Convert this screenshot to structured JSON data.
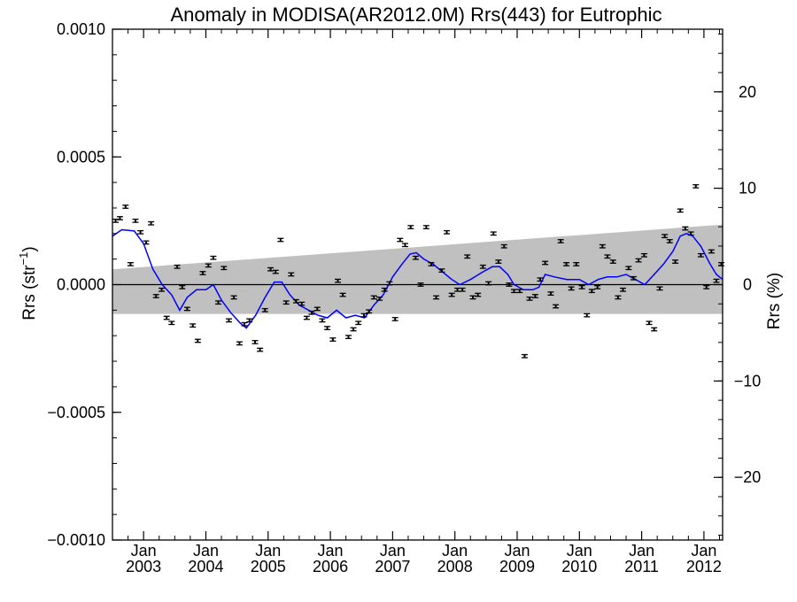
{
  "chart_data": {
    "type": "scatter",
    "title": "Anomaly in MODISA(AR2012.0M) Rrs(443) for Eutrophic",
    "ylabel": "Rrs (str⁻¹)",
    "ylabel_main": "Rrs (str",
    "ylabel_sup": "−1",
    "ylabel_close": ")",
    "y2label": "Rrs (%)",
    "xlim": [
      2002.5,
      2012.3
    ],
    "ylim": [
      -0.001,
      0.001
    ],
    "y2lim": [
      -26.5,
      26.5
    ],
    "x_ticks": [
      {
        "x": 2003.0,
        "month": "Jan",
        "year": "2003"
      },
      {
        "x": 2004.0,
        "month": "Jan",
        "year": "2004"
      },
      {
        "x": 2005.0,
        "month": "Jan",
        "year": "2005"
      },
      {
        "x": 2006.0,
        "month": "Jan",
        "year": "2006"
      },
      {
        "x": 2007.0,
        "month": "Jan",
        "year": "2007"
      },
      {
        "x": 2008.0,
        "month": "Jan",
        "year": "2008"
      },
      {
        "x": 2009.0,
        "month": "Jan",
        "year": "2009"
      },
      {
        "x": 2010.0,
        "month": "Jan",
        "year": "2010"
      },
      {
        "x": 2011.0,
        "month": "Jan",
        "year": "2011"
      },
      {
        "x": 2012.0,
        "month": "Jan",
        "year": "2012"
      }
    ],
    "y_ticks": [
      {
        "value": 0.001,
        "label": "0.0010"
      },
      {
        "value": 0.0005,
        "label": "0.0005"
      },
      {
        "value": 0.0,
        "label": "0.0000"
      },
      {
        "value": -0.0005,
        "label": "−0.0005"
      },
      {
        "value": -0.001,
        "label": "−0.0010"
      }
    ],
    "y2_ticks": [
      {
        "value": 20,
        "label": "20"
      },
      {
        "value": 10,
        "label": "10"
      },
      {
        "value": 0,
        "label": "0"
      },
      {
        "value": -10,
        "label": "−10"
      },
      {
        "value": -20,
        "label": "−20"
      }
    ],
    "band": {
      "upper": [
        [
          2002.5,
          6e-05
        ],
        [
          2012.3,
          0.000235
        ]
      ],
      "lower": [
        [
          2002.5,
          -0.000115
        ],
        [
          2012.3,
          -0.000115
        ]
      ]
    },
    "error_halfwidth": 6e-06,
    "points": [
      {
        "x": 2002.55,
        "y": 0.00025
      },
      {
        "x": 2002.62,
        "y": 0.00026
      },
      {
        "x": 2002.71,
        "y": 0.000305
      },
      {
        "x": 2002.79,
        "y": 8e-05
      },
      {
        "x": 2002.87,
        "y": 0.00025
      },
      {
        "x": 2002.95,
        "y": 0.000205
      },
      {
        "x": 2003.04,
        "y": 0.000165
      },
      {
        "x": 2003.12,
        "y": 0.00024
      },
      {
        "x": 2003.2,
        "y": -4.5e-05
      },
      {
        "x": 2003.29,
        "y": -2e-05
      },
      {
        "x": 2003.37,
        "y": -0.00013
      },
      {
        "x": 2003.45,
        "y": -0.00015
      },
      {
        "x": 2003.54,
        "y": 7e-05
      },
      {
        "x": 2003.62,
        "y": -1e-05
      },
      {
        "x": 2003.7,
        "y": -9.5e-05
      },
      {
        "x": 2003.79,
        "y": -0.00016
      },
      {
        "x": 2003.87,
        "y": -0.00022
      },
      {
        "x": 2003.95,
        "y": 4.5e-05
      },
      {
        "x": 2004.04,
        "y": 7.5e-05
      },
      {
        "x": 2004.12,
        "y": 0.000105
      },
      {
        "x": 2004.2,
        "y": -7e-05
      },
      {
        "x": 2004.29,
        "y": 6.5e-05
      },
      {
        "x": 2004.37,
        "y": -0.00014
      },
      {
        "x": 2004.45,
        "y": -5e-05
      },
      {
        "x": 2004.54,
        "y": -0.00023
      },
      {
        "x": 2004.62,
        "y": -0.000155
      },
      {
        "x": 2004.7,
        "y": -0.00014
      },
      {
        "x": 2004.79,
        "y": -0.000225
      },
      {
        "x": 2004.87,
        "y": -0.000255
      },
      {
        "x": 2004.95,
        "y": -0.0001
      },
      {
        "x": 2005.04,
        "y": 6e-05
      },
      {
        "x": 2005.12,
        "y": 5e-05
      },
      {
        "x": 2005.2,
        "y": 0.000175
      },
      {
        "x": 2005.29,
        "y": -7e-05
      },
      {
        "x": 2005.37,
        "y": 4e-05
      },
      {
        "x": 2005.45,
        "y": -6.5e-05
      },
      {
        "x": 2005.54,
        "y": -7.5e-05
      },
      {
        "x": 2005.62,
        "y": -0.00013
      },
      {
        "x": 2005.7,
        "y": -0.00011
      },
      {
        "x": 2005.79,
        "y": -9.5e-05
      },
      {
        "x": 2005.87,
        "y": -0.00014
      },
      {
        "x": 2005.95,
        "y": -0.00017
      },
      {
        "x": 2006.04,
        "y": -0.000215
      },
      {
        "x": 2006.12,
        "y": 1.5e-05
      },
      {
        "x": 2006.2,
        "y": -4e-05
      },
      {
        "x": 2006.29,
        "y": -0.000205
      },
      {
        "x": 2006.37,
        "y": -0.000175
      },
      {
        "x": 2006.45,
        "y": -0.00015
      },
      {
        "x": 2006.54,
        "y": -0.00012
      },
      {
        "x": 2006.62,
        "y": -0.000105
      },
      {
        "x": 2006.7,
        "y": -5e-05
      },
      {
        "x": 2006.79,
        "y": -5.5e-05
      },
      {
        "x": 2006.87,
        "y": -2e-05
      },
      {
        "x": 2006.95,
        "y": 5e-06
      },
      {
        "x": 2007.04,
        "y": -0.000135
      },
      {
        "x": 2007.12,
        "y": 0.000175
      },
      {
        "x": 2007.2,
        "y": 0.000155
      },
      {
        "x": 2007.29,
        "y": 0.000225
      },
      {
        "x": 2007.37,
        "y": 0.000105
      },
      {
        "x": 2007.45,
        "y": 0.0
      },
      {
        "x": 2007.54,
        "y": 0.000225
      },
      {
        "x": 2007.62,
        "y": 8e-05
      },
      {
        "x": 2007.7,
        "y": -5e-05
      },
      {
        "x": 2007.79,
        "y": 5.5e-05
      },
      {
        "x": 2007.87,
        "y": 0.000205
      },
      {
        "x": 2007.95,
        "y": -4e-05
      },
      {
        "x": 2008.04,
        "y": -2e-05
      },
      {
        "x": 2008.12,
        "y": -2e-05
      },
      {
        "x": 2008.2,
        "y": 0.00011
      },
      {
        "x": 2008.29,
        "y": -5e-05
      },
      {
        "x": 2008.37,
        "y": -4e-05
      },
      {
        "x": 2008.45,
        "y": 7e-05
      },
      {
        "x": 2008.54,
        "y": 5e-06
      },
      {
        "x": 2008.62,
        "y": 0.0002
      },
      {
        "x": 2008.7,
        "y": 9e-05
      },
      {
        "x": 2008.79,
        "y": 0.00015
      },
      {
        "x": 2008.87,
        "y": 0.0
      },
      {
        "x": 2008.95,
        "y": -2.5e-05
      },
      {
        "x": 2009.04,
        "y": -2.5e-05
      },
      {
        "x": 2009.12,
        "y": -0.00028
      },
      {
        "x": 2009.2,
        "y": -5.5e-05
      },
      {
        "x": 2009.29,
        "y": -4.5e-05
      },
      {
        "x": 2009.37,
        "y": 2e-05
      },
      {
        "x": 2009.45,
        "y": 8.5e-05
      },
      {
        "x": 2009.54,
        "y": -3.5e-05
      },
      {
        "x": 2009.62,
        "y": -8.5e-05
      },
      {
        "x": 2009.7,
        "y": 0.00017
      },
      {
        "x": 2009.79,
        "y": 8e-05
      },
      {
        "x": 2009.87,
        "y": -1.5e-05
      },
      {
        "x": 2009.95,
        "y": 8e-05
      },
      {
        "x": 2010.04,
        "y": -1e-05
      },
      {
        "x": 2010.12,
        "y": -0.00012
      },
      {
        "x": 2010.2,
        "y": -2.5e-05
      },
      {
        "x": 2010.29,
        "y": -1e-05
      },
      {
        "x": 2010.37,
        "y": 0.00015
      },
      {
        "x": 2010.45,
        "y": 0.00011
      },
      {
        "x": 2010.54,
        "y": 9e-05
      },
      {
        "x": 2010.62,
        "y": -5e-05
      },
      {
        "x": 2010.7,
        "y": -2e-05
      },
      {
        "x": 2010.79,
        "y": 6.5e-05
      },
      {
        "x": 2010.87,
        "y": 2.5e-05
      },
      {
        "x": 2010.95,
        "y": 9.5e-05
      },
      {
        "x": 2011.04,
        "y": 0.000115
      },
      {
        "x": 2011.12,
        "y": -0.00015
      },
      {
        "x": 2011.2,
        "y": -0.000175
      },
      {
        "x": 2011.29,
        "y": -1.5e-05
      },
      {
        "x": 2011.37,
        "y": 0.00019
      },
      {
        "x": 2011.45,
        "y": 0.00017
      },
      {
        "x": 2011.54,
        "y": 9e-05
      },
      {
        "x": 2011.62,
        "y": 0.00029
      },
      {
        "x": 2011.7,
        "y": 0.00022
      },
      {
        "x": 2011.79,
        "y": 0.0002
      },
      {
        "x": 2011.87,
        "y": 0.000385
      },
      {
        "x": 2011.95,
        "y": 0.000115
      },
      {
        "x": 2012.04,
        "y": -1e-05
      },
      {
        "x": 2012.12,
        "y": 0.00013
      },
      {
        "x": 2012.2,
        "y": 1.5e-05
      },
      {
        "x": 2012.28,
        "y": 8e-05
      }
    ],
    "smooth_line": {
      "color": "#0000ff",
      "points": [
        [
          2002.5,
          0.00019
        ],
        [
          2002.65,
          0.000215
        ],
        [
          2002.85,
          0.00021
        ],
        [
          2003.0,
          0.00016
        ],
        [
          2003.15,
          6e-05
        ],
        [
          2003.3,
          0.0
        ],
        [
          2003.45,
          -4e-05
        ],
        [
          2003.58,
          -0.0001
        ],
        [
          2003.7,
          -5e-05
        ],
        [
          2003.85,
          -2e-05
        ],
        [
          2004.0,
          -2e-05
        ],
        [
          2004.12,
          0.0
        ],
        [
          2004.25,
          -6e-05
        ],
        [
          2004.4,
          -0.00011
        ],
        [
          2004.55,
          -0.00015
        ],
        [
          2004.65,
          -0.00017
        ],
        [
          2004.8,
          -0.00012
        ],
        [
          2004.95,
          -5e-05
        ],
        [
          2005.1,
          1e-05
        ],
        [
          2005.22,
          1e-05
        ],
        [
          2005.35,
          -4e-05
        ],
        [
          2005.5,
          -8e-05
        ],
        [
          2005.65,
          -0.0001
        ],
        [
          2005.8,
          -0.00012
        ],
        [
          2005.95,
          -0.00013
        ],
        [
          2006.1,
          -0.0001
        ],
        [
          2006.25,
          -0.00013
        ],
        [
          2006.4,
          -0.00012
        ],
        [
          2006.55,
          -0.00013
        ],
        [
          2006.7,
          -8e-05
        ],
        [
          2006.85,
          -4e-05
        ],
        [
          2007.0,
          3e-05
        ],
        [
          2007.15,
          8e-05
        ],
        [
          2007.28,
          0.00012
        ],
        [
          2007.38,
          0.000125
        ],
        [
          2007.5,
          0.0001
        ],
        [
          2007.65,
          8e-05
        ],
        [
          2007.8,
          5e-05
        ],
        [
          2007.95,
          2e-05
        ],
        [
          2008.08,
          0.0
        ],
        [
          2008.25,
          2e-05
        ],
        [
          2008.45,
          5e-05
        ],
        [
          2008.6,
          7e-05
        ],
        [
          2008.72,
          7e-05
        ],
        [
          2008.85,
          4e-05
        ],
        [
          2008.95,
          0.0
        ],
        [
          2009.1,
          -2e-05
        ],
        [
          2009.25,
          -2e-05
        ],
        [
          2009.35,
          -1e-05
        ],
        [
          2009.45,
          4e-05
        ],
        [
          2009.6,
          3e-05
        ],
        [
          2009.8,
          2e-05
        ],
        [
          2010.0,
          2e-05
        ],
        [
          2010.15,
          0.0
        ],
        [
          2010.3,
          2e-05
        ],
        [
          2010.45,
          3e-05
        ],
        [
          2010.6,
          3e-05
        ],
        [
          2010.75,
          4e-05
        ],
        [
          2010.9,
          2e-05
        ],
        [
          2011.05,
          0.0
        ],
        [
          2011.2,
          4e-05
        ],
        [
          2011.35,
          8e-05
        ],
        [
          2011.5,
          0.00013
        ],
        [
          2011.62,
          0.00019
        ],
        [
          2011.72,
          0.0002
        ],
        [
          2011.82,
          0.00019
        ],
        [
          2011.95,
          0.00015
        ],
        [
          2012.1,
          8e-05
        ],
        [
          2012.2,
          4e-05
        ],
        [
          2012.3,
          2e-05
        ]
      ]
    },
    "band_color": "#c0c0c0",
    "point_color": "#000000",
    "zero_line_color": "#000000"
  }
}
